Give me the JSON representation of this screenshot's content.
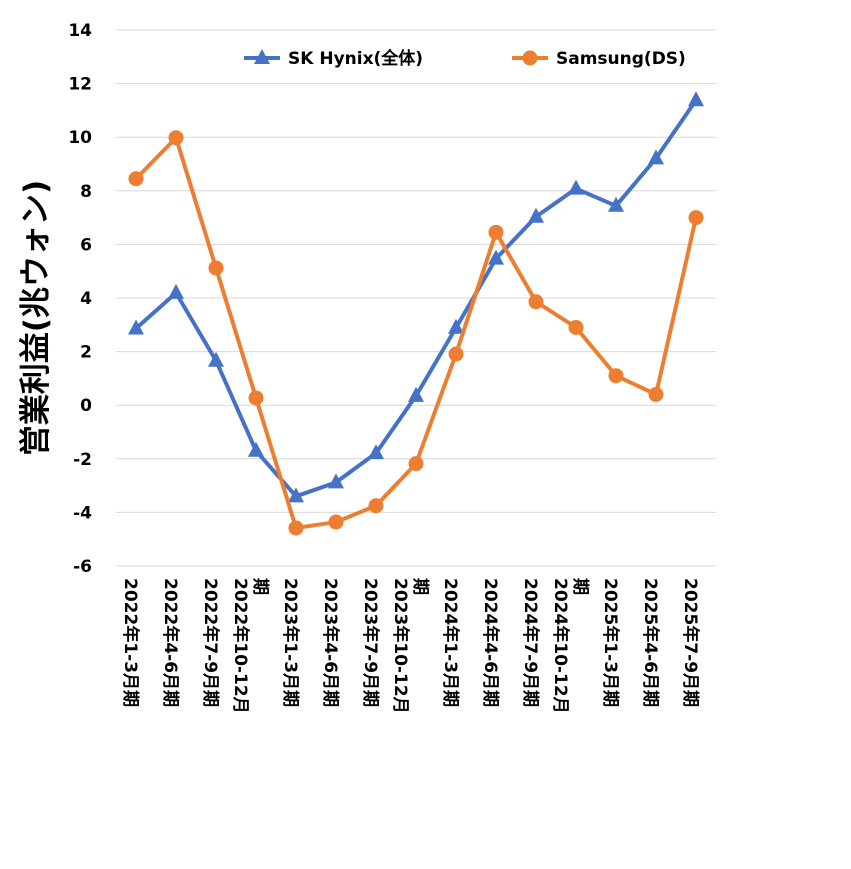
{
  "chart_data": {
    "type": "line",
    "ylabel": "営業利益(兆ウォン)",
    "xlabel": "",
    "title": "",
    "ylim": [
      -6,
      14
    ],
    "ytick_step": 2,
    "grid": true,
    "legend_position": "top",
    "categories": [
      "2022年1-3月期",
      "2022年4-6月期",
      "2022年7-9月期",
      "2022年10-12月期",
      "2023年1-3月期",
      "2023年4-6月期",
      "2023年7-9月期",
      "2023年10-12月期",
      "2024年1-3月期",
      "2024年4-6月期",
      "2024年7-9月期",
      "2024年10-12月期",
      "2025年1-3月期",
      "2025年4-6月期",
      "2025年7-9月期"
    ],
    "series": [
      {
        "name": "SK Hynix(全体)",
        "color": "#4472C4",
        "marker": "triangle",
        "values": [
          2.86,
          4.19,
          1.66,
          -1.7,
          -3.4,
          -2.88,
          -1.79,
          0.35,
          2.89,
          5.47,
          7.03,
          8.08,
          7.44,
          9.21,
          11.38
        ]
      },
      {
        "name": "Samsung(DS)",
        "color": "#ED7D31",
        "marker": "circle",
        "values": [
          8.45,
          9.98,
          5.12,
          0.27,
          -4.58,
          -4.36,
          -3.75,
          -2.18,
          1.91,
          6.45,
          3.86,
          2.9,
          1.1,
          0.4,
          7.0
        ]
      }
    ]
  }
}
